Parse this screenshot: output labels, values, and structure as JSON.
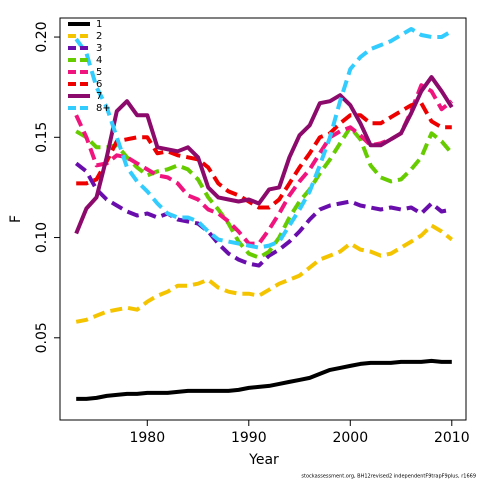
{
  "chart_data": {
    "type": "line",
    "xlabel": "Year",
    "ylabel": "F",
    "footnote": "stockassessment.org, BH12revised2 independentF9trapF9plus, r1669",
    "x": [
      1973,
      1974,
      1975,
      1976,
      1977,
      1978,
      1979,
      1980,
      1981,
      1982,
      1983,
      1984,
      1985,
      1986,
      1987,
      1988,
      1989,
      1990,
      1991,
      1992,
      1993,
      1994,
      1995,
      1996,
      1997,
      1998,
      1999,
      2000,
      2001,
      2002,
      2003,
      2004,
      2005,
      2006,
      2007,
      2008,
      2009,
      2010
    ],
    "xlim": [
      1971.4,
      2011.4
    ],
    "xticks": [
      1980,
      1990,
      2000,
      2010
    ],
    "ylim": [
      0.009,
      0.2095
    ],
    "yticks": [
      0.05,
      {
        "value": 0.1,
        "label": "0.10"
      },
      0.15,
      {
        "value": 0.2,
        "label": "0.20"
      }
    ],
    "legend": "top-left",
    "series": [
      {
        "name": "1",
        "color": "#000000",
        "dashed": false,
        "values": [
          0.0195,
          0.0195,
          0.02,
          0.021,
          0.0215,
          0.022,
          0.022,
          0.0225,
          0.0225,
          0.0225,
          0.023,
          0.0235,
          0.0235,
          0.0235,
          0.0235,
          0.0235,
          0.024,
          0.025,
          0.0255,
          0.026,
          0.027,
          0.028,
          0.029,
          0.03,
          0.032,
          0.034,
          0.035,
          0.036,
          0.037,
          0.0375,
          0.0375,
          0.0375,
          0.038,
          0.038,
          0.038,
          0.0385,
          0.038,
          0.038
        ]
      },
      {
        "name": "2",
        "color": "#f5c400",
        "dashed": true,
        "values": [
          0.058,
          0.059,
          0.061,
          0.063,
          0.064,
          0.065,
          0.064,
          0.068,
          0.071,
          0.073,
          0.076,
          0.076,
          0.077,
          0.079,
          0.075,
          0.073,
          0.072,
          0.072,
          0.071,
          0.074,
          0.077,
          0.079,
          0.081,
          0.085,
          0.089,
          0.091,
          0.093,
          0.097,
          0.094,
          0.093,
          0.091,
          0.092,
          0.095,
          0.098,
          0.101,
          0.106,
          0.103,
          0.099
        ]
      },
      {
        "name": "3",
        "color": "#6a0dad",
        "dashed": true,
        "values": [
          0.137,
          0.133,
          0.124,
          0.119,
          0.116,
          0.113,
          0.111,
          0.112,
          0.11,
          0.112,
          0.109,
          0.108,
          0.107,
          0.103,
          0.097,
          0.092,
          0.089,
          0.087,
          0.086,
          0.091,
          0.094,
          0.098,
          0.103,
          0.109,
          0.114,
          0.116,
          0.117,
          0.118,
          0.116,
          0.115,
          0.114,
          0.115,
          0.114,
          0.115,
          0.112,
          0.117,
          0.113,
          0.114
        ]
      },
      {
        "name": "4",
        "color": "#66cc00",
        "dashed": true,
        "values": [
          0.153,
          0.15,
          0.145,
          0.145,
          0.146,
          0.14,
          0.135,
          0.131,
          0.133,
          0.134,
          0.136,
          0.134,
          0.129,
          0.12,
          0.114,
          0.107,
          0.098,
          0.092,
          0.09,
          0.093,
          0.1,
          0.11,
          0.118,
          0.124,
          0.132,
          0.139,
          0.147,
          0.155,
          0.149,
          0.136,
          0.13,
          0.128,
          0.129,
          0.134,
          0.14,
          0.152,
          0.148,
          0.142
        ]
      },
      {
        "name": "5",
        "color": "#f0147f",
        "dashed": true,
        "values": [
          0.161,
          0.15,
          0.136,
          0.137,
          0.141,
          0.14,
          0.137,
          0.134,
          0.131,
          0.13,
          0.127,
          0.121,
          0.119,
          0.114,
          0.112,
          0.108,
          0.103,
          0.097,
          0.097,
          0.104,
          0.112,
          0.121,
          0.128,
          0.134,
          0.142,
          0.15,
          0.153,
          0.155,
          0.151,
          0.146,
          0.147,
          0.149,
          0.152,
          0.163,
          0.176,
          0.173,
          0.164,
          0.168
        ]
      },
      {
        "name": "6",
        "color": "#ee0000",
        "dashed": true,
        "values": [
          0.127,
          0.127,
          0.129,
          0.138,
          0.148,
          0.149,
          0.15,
          0.15,
          0.142,
          0.143,
          0.141,
          0.14,
          0.139,
          0.135,
          0.127,
          0.123,
          0.121,
          0.118,
          0.115,
          0.115,
          0.119,
          0.127,
          0.135,
          0.142,
          0.15,
          0.152,
          0.157,
          0.161,
          0.161,
          0.157,
          0.157,
          0.16,
          0.163,
          0.166,
          0.167,
          0.158,
          0.155,
          0.155
        ]
      },
      {
        "name": "7",
        "color": "#8b0a6b",
        "dashed": false,
        "values": [
          0.102,
          0.1145,
          0.12,
          0.14,
          0.163,
          0.168,
          0.161,
          0.161,
          0.145,
          0.144,
          0.143,
          0.145,
          0.14,
          0.125,
          0.12,
          0.119,
          0.118,
          0.119,
          0.117,
          0.124,
          0.125,
          0.14,
          0.151,
          0.156,
          0.167,
          0.168,
          0.171,
          0.166,
          0.157,
          0.146,
          0.146,
          0.149,
          0.152,
          0.162,
          0.173,
          0.18,
          0.173,
          0.165
        ]
      },
      {
        "name": "8+",
        "color": "#33ccff",
        "dashed": true,
        "values": [
          0.199,
          0.192,
          0.175,
          0.165,
          0.15,
          0.135,
          0.128,
          0.123,
          0.117,
          0.112,
          0.11,
          0.11,
          0.108,
          0.103,
          0.099,
          0.098,
          0.097,
          0.096,
          0.095,
          0.096,
          0.098,
          0.106,
          0.114,
          0.123,
          0.136,
          0.15,
          0.168,
          0.184,
          0.19,
          0.194,
          0.196,
          0.198,
          0.201,
          0.204,
          0.201,
          0.2,
          0.2,
          0.203
        ]
      }
    ]
  }
}
